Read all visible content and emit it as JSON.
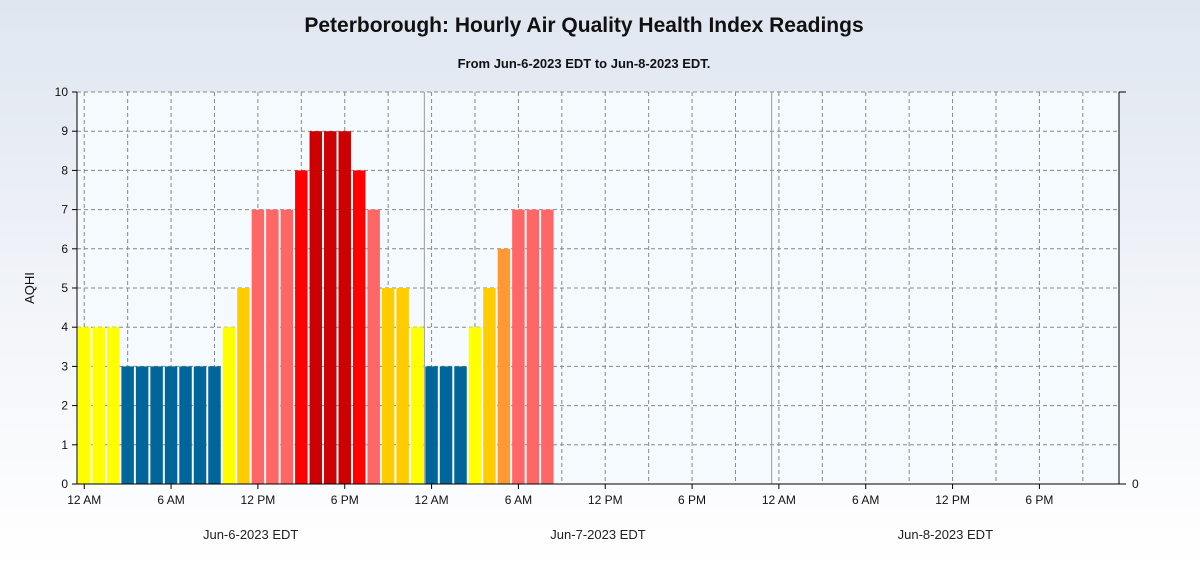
{
  "chart_data": {
    "type": "bar",
    "title": "Peterborough: Hourly Air Quality Health Index Readings",
    "subtitle": "From Jun-6-2023 EDT to Jun-8-2023 EDT.",
    "ylabel": "AQHI",
    "ylim": [
      0,
      10
    ],
    "yticks": [
      "0",
      "1",
      "2",
      "3",
      "4",
      "5",
      "6",
      "7",
      "8",
      "9",
      "10"
    ],
    "right_axis_tick": "0",
    "xlim_hours": [
      0,
      72
    ],
    "grid": true,
    "x_tick_labels": [
      "12 AM",
      "6 AM",
      "12 PM",
      "6 PM",
      "12 AM",
      "6 AM",
      "12 PM",
      "6 PM",
      "12 AM",
      "6 AM",
      "12 PM",
      "6 PM"
    ],
    "day_labels": [
      "Jun-6-2023 EDT",
      "Jun-7-2023 EDT",
      "Jun-8-2023 EDT"
    ],
    "colors": {
      "1": "#00ccff",
      "2": "#0099cc",
      "3": "#006699",
      "4": "#ffff00",
      "5": "#ffcc00",
      "6": "#ff9933",
      "7": "#ff6666",
      "8": "#ff0000",
      "9": "#cc0000",
      "10": "#990000"
    },
    "hours": [
      "12 AM",
      "1 AM",
      "2 AM",
      "3 AM",
      "4 AM",
      "5 AM",
      "6 AM",
      "7 AM",
      "8 AM",
      "9 AM",
      "10 AM",
      "11 AM",
      "12 PM",
      "1 PM",
      "2 PM",
      "3 PM",
      "4 PM",
      "5 PM",
      "6 PM",
      "7 PM",
      "8 PM",
      "9 PM",
      "10 PM",
      "11 PM",
      "12 AM",
      "1 AM",
      "2 AM",
      "3 AM",
      "4 AM",
      "5 AM",
      "6 AM",
      "7 AM",
      "8 AM"
    ],
    "values": [
      4,
      4,
      4,
      3,
      3,
      3,
      3,
      3,
      3,
      3,
      4,
      5,
      7,
      7,
      7,
      8,
      9,
      9,
      9,
      8,
      7,
      5,
      5,
      4,
      3,
      3,
      3,
      4,
      5,
      6,
      7,
      7,
      7
    ]
  }
}
